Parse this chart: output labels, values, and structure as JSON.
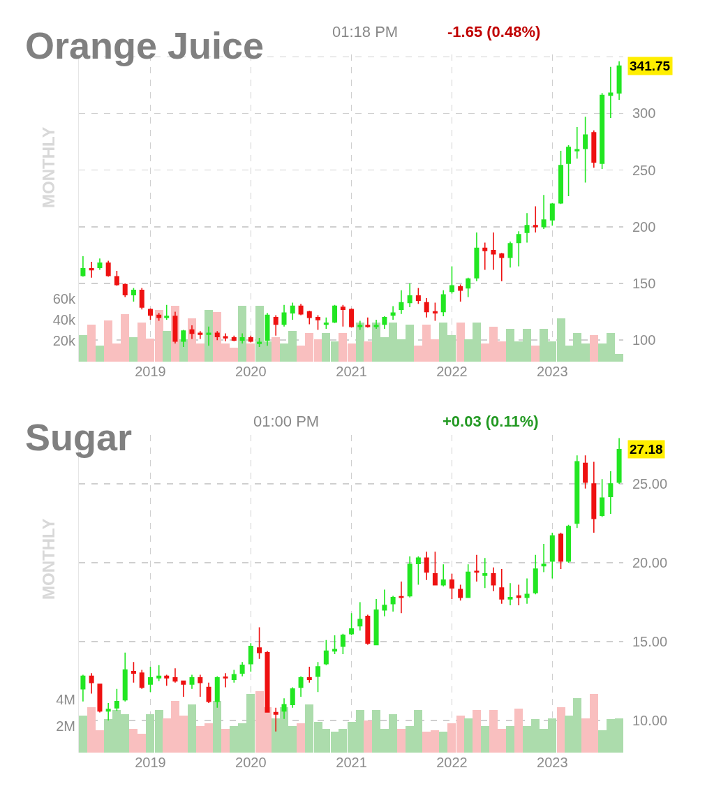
{
  "chart_data": [
    {
      "type": "candlestick",
      "title": "Orange Juice",
      "annotations": [
        "01:18 PM",
        "-1.65 (0.48%)",
        "MONTHLY",
        "341.75"
      ],
      "x": [
        "2018-05",
        "2018-06",
        "2018-07",
        "2018-08",
        "2018-09",
        "2018-10",
        "2018-11",
        "2018-12",
        "2019-01",
        "2019-02",
        "2019-03",
        "2019-04",
        "2019-05",
        "2019-06",
        "2019-07",
        "2019-08",
        "2019-09",
        "2019-10",
        "2019-11",
        "2019-12",
        "2020-01",
        "2020-02",
        "2020-03",
        "2020-04",
        "2020-05",
        "2020-06",
        "2020-07",
        "2020-08",
        "2020-09",
        "2020-10",
        "2020-11",
        "2020-12",
        "2021-01",
        "2021-02",
        "2021-03",
        "2021-04",
        "2021-05",
        "2021-06",
        "2021-07",
        "2021-08",
        "2021-09",
        "2021-10",
        "2021-11",
        "2021-12",
        "2022-01",
        "2022-02",
        "2022-03",
        "2022-04",
        "2022-05",
        "2022-06",
        "2022-07",
        "2022-08",
        "2022-09",
        "2022-10",
        "2022-11",
        "2022-12",
        "2023-01",
        "2023-02",
        "2023-03",
        "2023-04",
        "2023-05",
        "2023-06",
        "2023-07",
        "2023-08",
        "2023-09"
      ],
      "xlim": [
        "2018-04-16",
        "2023-09-16"
      ],
      "xticks": [
        {
          "value": "2019-01",
          "label": "2019"
        },
        {
          "value": "2020-01",
          "label": "2020"
        },
        {
          "value": "2021-01",
          "label": "2021"
        },
        {
          "value": "2022-01",
          "label": "2022"
        },
        {
          "value": "2023-01",
          "label": "2023"
        }
      ],
      "ylim": [
        81,
        352
      ],
      "yticks": [
        100,
        150,
        200,
        250,
        300,
        {
          "value": 350,
          "label": null
        }
      ],
      "y2lim": [
        0,
        293000
      ],
      "y2ticks": [
        {
          "value": 20000,
          "label": "20k"
        },
        {
          "value": 40000,
          "label": "40k"
        },
        {
          "value": 60000,
          "label": "60k"
        }
      ],
      "grid": true,
      "series": [
        {
          "type": "bar",
          "axis": "y2",
          "values": [
            25000,
            35000,
            15000,
            39000,
            17000,
            45000,
            23000,
            37000,
            22000,
            49000,
            29000,
            53000,
            21000,
            41000,
            17000,
            49000,
            47000,
            17000,
            13000,
            53000,
            17000,
            53000,
            19000,
            23000,
            17000,
            29000,
            15000,
            27000,
            21000,
            27000,
            19000,
            27000,
            17000,
            37000,
            19000,
            37000,
            23000,
            37000,
            21000,
            35000,
            15000,
            35000,
            21000,
            37000,
            25000,
            37000,
            21000,
            37000,
            17000,
            33000,
            19000,
            31000,
            19000,
            31000,
            15000,
            31000,
            19000,
            41000,
            15000,
            27000,
            17000,
            25000,
            17000,
            27000,
            7000
          ],
          "colors": [
            "#acdcac",
            "#f9bfbf",
            "#acdcac",
            "#f9bfbf",
            "#f9bfbf",
            "#f9bfbf",
            "#acdcac",
            "#f9bfbf",
            "#f9bfbf",
            "#f9bfbf",
            "#acdcac",
            "#f9bfbf",
            "#acdcac",
            "#f9bfbf",
            "#f9bfbf",
            "#acdcac",
            "#f9bfbf",
            "#f9bfbf",
            "#f9bfbf",
            "#acdcac",
            "#f9bfbf",
            "#acdcac",
            "#acdcac",
            "#f9bfbf",
            "#acdcac",
            "#acdcac",
            "#f9bfbf",
            "#f9bfbf",
            "#f9bfbf",
            "#acdcac",
            "#acdcac",
            "#f9bfbf",
            "#f9bfbf",
            "#acdcac",
            "#f9bfbf",
            "#acdcac",
            "#acdcac",
            "#acdcac",
            "#acdcac",
            "#acdcac",
            "#f9bfbf",
            "#f9bfbf",
            "#f9bfbf",
            "#acdcac",
            "#acdcac",
            "#f9bfbf",
            "#acdcac",
            "#acdcac",
            "#f9bfbf",
            "#f9bfbf",
            "#f9bfbf",
            "#acdcac",
            "#acdcac",
            "#acdcac",
            "#f9bfbf",
            "#acdcac",
            "#acdcac",
            "#acdcac",
            "#acdcac",
            "#acdcac",
            "#acdcac",
            "#f9bfbf",
            "#acdcac",
            "#acdcac",
            "#acdcac"
          ]
        },
        {
          "type": "candlestick",
          "colors": [
            "#22e622",
            "#ee1111",
            "#22e622",
            "#ee1111",
            "#ee1111",
            "#ee1111",
            "#22e622",
            "#ee1111",
            "#ee1111",
            "#ee1111",
            "#22e622",
            "#ee1111",
            "#22e622",
            "#ee1111",
            "#ee1111",
            "#22e622",
            "#ee1111",
            "#ee1111",
            "#ee1111",
            "#22e622",
            "#ee1111",
            "#22e622",
            "#22e622",
            "#ee1111",
            "#22e622",
            "#22e622",
            "#ee1111",
            "#ee1111",
            "#ee1111",
            "#22e622",
            "#22e622",
            "#ee1111",
            "#ee1111",
            "#22e622",
            "#ee1111",
            "#22e622",
            "#22e622",
            "#22e622",
            "#22e622",
            "#22e622",
            "#ee1111",
            "#ee1111",
            "#ee1111",
            "#22e622",
            "#22e622",
            "#ee1111",
            "#22e622",
            "#22e622",
            "#ee1111",
            "#ee1111",
            "#ee1111",
            "#22e622",
            "#22e622",
            "#22e622",
            "#ee1111",
            "#22e622",
            "#22e622",
            "#22e622",
            "#22e622",
            "#22e622",
            "#22e622",
            "#ee1111",
            "#22e622",
            "#22e622",
            "#22e622"
          ],
          "ohlc": [
            [
              157,
              174,
              156,
              163
            ],
            [
              163,
              169,
              155,
              162
            ],
            [
              164,
              172,
              162,
              168
            ],
            [
              168,
              170,
              156,
              157
            ],
            [
              156,
              161,
              148,
              149
            ],
            [
              149,
              150,
              138,
              140
            ],
            [
              140,
              146,
              134,
              144
            ],
            [
              144,
              146,
              127,
              129
            ],
            [
              127,
              128,
              118,
              122
            ],
            [
              122,
              124,
              117,
              120
            ],
            [
              120,
              131,
              118,
              121
            ],
            [
              121,
              125,
              97,
              99
            ],
            [
              99,
              109,
              94,
              108
            ],
            [
              109,
              113,
              101,
              106
            ],
            [
              106,
              108,
              101,
              105
            ],
            [
              105,
              112,
              95,
              106
            ],
            [
              106,
              108,
              100,
              103
            ],
            [
              103,
              106,
              99,
              102
            ],
            [
              102,
              104,
              99,
              100
            ],
            [
              100,
              106,
              97,
              102
            ],
            [
              102,
              104,
              98,
              99
            ],
            [
              97,
              102,
              94,
              98
            ],
            [
              100,
              124,
              95,
              122
            ],
            [
              120,
              122,
              104,
              114
            ],
            [
              114,
              131,
              112,
              124
            ],
            [
              124,
              133,
              118,
              130
            ],
            [
              130,
              132,
              122,
              123
            ],
            [
              125,
              126,
              114,
              120
            ],
            [
              120,
              122,
              109,
              118
            ],
            [
              114,
              120,
              110,
              115
            ],
            [
              116,
              131,
              115,
              130
            ],
            [
              129,
              131,
              112,
              127
            ],
            [
              127,
              128,
              111,
              112
            ],
            [
              112,
              117,
              109,
              113
            ],
            [
              113,
              120,
              111,
              112
            ],
            [
              112,
              118,
              110,
              113
            ],
            [
              114,
              121,
              110,
              120
            ],
            [
              122,
              130,
              118,
              124
            ],
            [
              127,
              144,
              123,
              133
            ],
            [
              133,
              150,
              129,
              139
            ],
            [
              139,
              146,
              132,
              135
            ],
            [
              133,
              137,
              120,
              125
            ],
            [
              125,
              133,
              117,
              124
            ],
            [
              125,
              144,
              121,
              140
            ],
            [
              143,
              165,
              141,
              148
            ],
            [
              147,
              149,
              134,
              144
            ],
            [
              146,
              155,
              138,
              154
            ],
            [
              155,
              195,
              152,
              181
            ],
            [
              181,
              186,
              162,
              179
            ],
            [
              179,
              195,
              162,
              176
            ],
            [
              176,
              177,
              152,
              173
            ],
            [
              173,
              187,
              164,
              185
            ],
            [
              186,
              196,
              165,
              193
            ],
            [
              195,
              212,
              186,
              201
            ],
            [
              201,
              218,
              195,
              200
            ],
            [
              200,
              228,
              198,
              206
            ],
            [
              206,
              221,
              201,
              220
            ],
            [
              221,
              267,
              220,
              254
            ],
            [
              256,
              272,
              227,
              270
            ],
            [
              267,
              288,
              260,
              268
            ],
            [
              269,
              297,
              239,
              281
            ],
            [
              283,
              285,
              252,
              257
            ],
            [
              256,
              318,
              251,
              316
            ],
            [
              316,
              341,
              296,
              318
            ],
            [
              318,
              346,
              312,
              341.75
            ]
          ]
        }
      ]
    },
    {
      "type": "candlestick",
      "title": "Sugar",
      "annotations": [
        "01:00 PM",
        "+0.03 (0.11%)",
        "MONTHLY",
        "27.18"
      ],
      "x": [
        "2018-05",
        "2018-06",
        "2018-07",
        "2018-08",
        "2018-09",
        "2018-10",
        "2018-11",
        "2018-12",
        "2019-01",
        "2019-02",
        "2019-03",
        "2019-04",
        "2019-05",
        "2019-06",
        "2019-07",
        "2019-08",
        "2019-09",
        "2019-10",
        "2019-11",
        "2019-12",
        "2020-01",
        "2020-02",
        "2020-03",
        "2020-04",
        "2020-05",
        "2020-06",
        "2020-07",
        "2020-08",
        "2020-09",
        "2020-10",
        "2020-11",
        "2020-12",
        "2021-01",
        "2021-02",
        "2021-03",
        "2021-04",
        "2021-05",
        "2021-06",
        "2021-07",
        "2021-08",
        "2021-09",
        "2021-10",
        "2021-11",
        "2021-12",
        "2022-01",
        "2022-02",
        "2022-03",
        "2022-04",
        "2022-05",
        "2022-06",
        "2022-07",
        "2022-08",
        "2022-09",
        "2022-10",
        "2022-11",
        "2022-12",
        "2023-01",
        "2023-02",
        "2023-03",
        "2023-04",
        "2023-05",
        "2023-06",
        "2023-07",
        "2023-08",
        "2023-09"
      ],
      "xlim": [
        "2018-04-16",
        "2023-09-16"
      ],
      "xticks": [
        {
          "value": "2019-01",
          "label": "2019"
        },
        {
          "value": "2020-01",
          "label": "2020"
        },
        {
          "value": "2021-01",
          "label": "2021"
        },
        {
          "value": "2022-01",
          "label": "2022"
        },
        {
          "value": "2023-01",
          "label": "2023"
        }
      ],
      "ylim": [
        7.96,
        28.1
      ],
      "yticks": [
        {
          "value": 10,
          "label": "10.00"
        },
        {
          "value": 15,
          "label": "15.00"
        },
        {
          "value": 20,
          "label": "20.00"
        },
        {
          "value": 25,
          "label": "25.00"
        }
      ],
      "y2lim": [
        0,
        23900000
      ],
      "y2ticks": [
        {
          "value": 2000000,
          "label": "2M"
        },
        {
          "value": 4000000,
          "label": "4M"
        }
      ],
      "grid": true,
      "series": [
        {
          "type": "bar",
          "axis": "y2",
          "values": [
            2800000,
            3400000,
            1700000,
            2500000,
            3200000,
            2900000,
            1800000,
            1400000,
            2900000,
            3200000,
            2600000,
            3900000,
            2800000,
            3600000,
            2000000,
            2200000,
            3900000,
            1800000,
            2000000,
            2200000,
            4400000,
            4600000,
            3400000,
            2600000,
            3400000,
            2000000,
            2200000,
            3600000,
            2300000,
            1800000,
            1600000,
            1800000,
            2300000,
            3200000,
            2400000,
            3200000,
            1800000,
            2900000,
            1800000,
            2000000,
            3200000,
            1600000,
            1700000,
            1600000,
            2200000,
            2800000,
            2600000,
            3200000,
            2000000,
            3200000,
            1800000,
            2000000,
            3300000,
            2000000,
            2500000,
            1800000,
            2600000,
            3400000,
            2800000,
            4100000,
            2600000,
            4400000,
            1700000,
            2500000,
            2600000
          ],
          "colors": [
            "#acdcac",
            "#f9bfbf",
            "#f9bfbf",
            "#acdcac",
            "#acdcac",
            "#acdcac",
            "#f9bfbf",
            "#f9bfbf",
            "#acdcac",
            "#acdcac",
            "#f9bfbf",
            "#f9bfbf",
            "#f9bfbf",
            "#acdcac",
            "#f9bfbf",
            "#f9bfbf",
            "#acdcac",
            "#f9bfbf",
            "#acdcac",
            "#acdcac",
            "#acdcac",
            "#f9bfbf",
            "#f9bfbf",
            "#acdcac",
            "#acdcac",
            "#acdcac",
            "#f9bfbf",
            "#acdcac",
            "#acdcac",
            "#acdcac",
            "#acdcac",
            "#acdcac",
            "#acdcac",
            "#acdcac",
            "#f9bfbf",
            "#acdcac",
            "#acdcac",
            "#acdcac",
            "#f9bfbf",
            "#acdcac",
            "#acdcac",
            "#f9bfbf",
            "#f9bfbf",
            "#acdcac",
            "#f9bfbf",
            "#f9bfbf",
            "#acdcac",
            "#f9bfbf",
            "#acdcac",
            "#f9bfbf",
            "#f9bfbf",
            "#acdcac",
            "#f9bfbf",
            "#acdcac",
            "#acdcac",
            "#acdcac",
            "#acdcac",
            "#f9bfbf",
            "#acdcac",
            "#acdcac",
            "#f9bfbf",
            "#f9bfbf",
            "#acdcac",
            "#acdcac",
            "#acdcac"
          ]
        },
        {
          "type": "candlestick",
          "colors": [
            "#22e622",
            "#ee1111",
            "#ee1111",
            "#22e622",
            "#22e622",
            "#22e622",
            "#ee1111",
            "#ee1111",
            "#22e622",
            "#22e622",
            "#ee1111",
            "#ee1111",
            "#ee1111",
            "#22e622",
            "#ee1111",
            "#ee1111",
            "#22e622",
            "#ee1111",
            "#22e622",
            "#22e622",
            "#22e622",
            "#ee1111",
            "#ee1111",
            "#ee1111",
            "#22e622",
            "#22e622",
            "#22e622",
            "#ee1111",
            "#22e622",
            "#22e622",
            "#22e622",
            "#22e622",
            "#22e622",
            "#22e622",
            "#ee1111",
            "#22e622",
            "#22e622",
            "#22e622",
            "#ee1111",
            "#22e622",
            "#22e622",
            "#ee1111",
            "#ee1111",
            "#22e622",
            "#ee1111",
            "#ee1111",
            "#22e622",
            "#ee1111",
            "#22e622",
            "#ee1111",
            "#ee1111",
            "#22e622",
            "#ee1111",
            "#22e622",
            "#22e622",
            "#22e622",
            "#22e622",
            "#ee1111",
            "#22e622",
            "#22e622",
            "#ee1111",
            "#ee1111",
            "#22e622",
            "#22e622",
            "#22e622"
          ],
          "ohlc": [
            [
              12.0,
              12.9,
              11.2,
              12.8
            ],
            [
              12.8,
              13.0,
              11.7,
              12.4
            ],
            [
              12.3,
              12.3,
              10.5,
              10.6
            ],
            [
              10.6,
              11.1,
              10.0,
              10.7
            ],
            [
              10.8,
              12.0,
              10.6,
              11.2
            ],
            [
              11.3,
              14.3,
              11.2,
              13.2
            ],
            [
              13.1,
              13.7,
              12.4,
              13.0
            ],
            [
              13.0,
              13.2,
              12.0,
              12.1
            ],
            [
              12.3,
              13.4,
              11.8,
              12.7
            ],
            [
              12.7,
              13.5,
              12.5,
              12.8
            ],
            [
              12.8,
              12.9,
              12.2,
              12.7
            ],
            [
              12.7,
              13.3,
              12.4,
              12.5
            ],
            [
              12.5,
              12.5,
              11.5,
              12.3
            ],
            [
              12.3,
              12.9,
              12.0,
              12.7
            ],
            [
              12.7,
              12.9,
              11.5,
              12.4
            ],
            [
              12.1,
              12.4,
              11.1,
              11.2
            ],
            [
              11.2,
              12.8,
              10.8,
              12.7
            ],
            [
              12.75,
              13.0,
              12.1,
              12.7
            ],
            [
              12.6,
              13.2,
              12.4,
              12.9
            ],
            [
              13.0,
              13.7,
              12.8,
              13.5
            ],
            [
              13.6,
              14.9,
              13.1,
              14.7
            ],
            [
              14.6,
              15.9,
              13.9,
              14.3
            ],
            [
              14.3,
              14.4,
              10.5,
              10.53
            ],
            [
              10.5,
              10.8,
              9.3,
              10.4
            ],
            [
              10.6,
              11.4,
              10.1,
              11.0
            ],
            [
              11.0,
              12.1,
              10.8,
              12.0
            ],
            [
              12.1,
              12.8,
              11.5,
              12.7
            ],
            [
              12.7,
              13.4,
              12.4,
              12.6
            ],
            [
              12.8,
              13.7,
              11.8,
              13.4
            ],
            [
              13.6,
              15.1,
              13.5,
              14.4
            ],
            [
              14.4,
              15.4,
              14.2,
              14.5
            ],
            [
              14.7,
              15.5,
              14.2,
              15.4
            ],
            [
              15.5,
              16.8,
              15.4,
              15.8
            ],
            [
              16.0,
              17.5,
              15.7,
              16.4
            ],
            [
              16.6,
              16.7,
              14.8,
              14.9
            ],
            [
              14.8,
              17.7,
              14.8,
              17.0
            ],
            [
              17.0,
              18.3,
              16.6,
              17.3
            ],
            [
              17.4,
              17.9,
              16.9,
              17.8
            ],
            [
              17.85,
              18.8,
              16.8,
              17.8
            ],
            [
              17.9,
              20.4,
              17.8,
              19.9
            ],
            [
              19.95,
              20.4,
              18.6,
              20.3
            ],
            [
              20.3,
              20.7,
              18.9,
              19.4
            ],
            [
              19.3,
              20.7,
              18.6,
              18.6
            ],
            [
              18.6,
              19.9,
              18.5,
              18.9
            ],
            [
              18.9,
              19.3,
              17.7,
              18.4
            ],
            [
              18.3,
              18.6,
              17.6,
              17.8
            ],
            [
              17.8,
              19.9,
              17.8,
              19.4
            ],
            [
              19.45,
              20.5,
              18.8,
              19.4
            ],
            [
              19.2,
              20.3,
              18.4,
              19.3
            ],
            [
              19.3,
              19.7,
              18.2,
              18.6
            ],
            [
              18.4,
              19.6,
              17.4,
              17.7
            ],
            [
              17.7,
              18.7,
              17.3,
              17.8
            ],
            [
              17.9,
              18.6,
              17.3,
              17.8
            ],
            [
              17.8,
              19.0,
              17.4,
              18.0
            ],
            [
              18.1,
              20.5,
              18.0,
              19.6
            ],
            [
              19.8,
              21.2,
              19.4,
              19.9
            ],
            [
              20.1,
              21.9,
              19.0,
              21.7
            ],
            [
              21.8,
              21.9,
              19.6,
              20.1
            ],
            [
              20.1,
              22.4,
              20.0,
              22.3
            ],
            [
              22.5,
              26.8,
              22.2,
              26.4
            ],
            [
              26.3,
              26.8,
              24.7,
              25.1
            ],
            [
              25.0,
              26.4,
              21.9,
              22.8
            ],
            [
              23.0,
              25.3,
              22.9,
              24.1
            ],
            [
              24.2,
              25.8,
              23.1,
              25.0
            ],
            [
              25.1,
              27.9,
              25.0,
              27.18
            ]
          ]
        }
      ]
    }
  ]
}
